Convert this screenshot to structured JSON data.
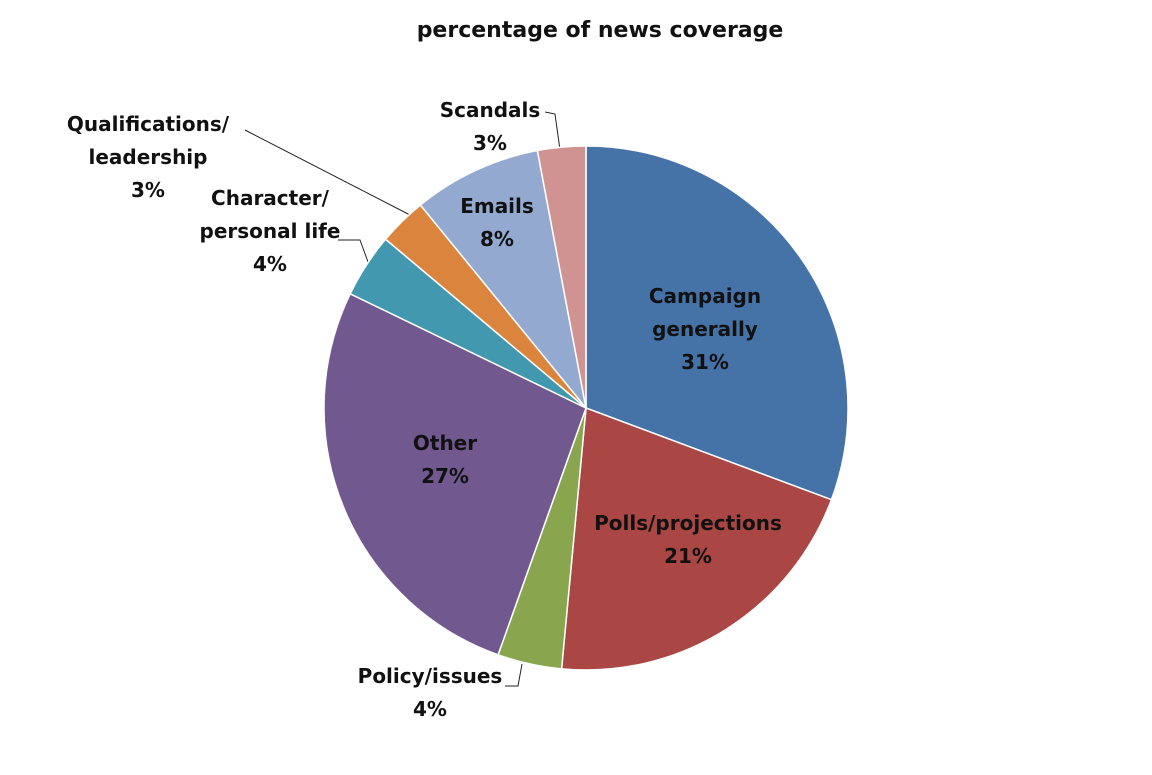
{
  "chart_data": {
    "type": "pie",
    "title": "percentage of news coverage",
    "categories": [
      "Campaign generally",
      "Polls/projections",
      "Policy/issues",
      "Other",
      "Character/ personal life",
      "Qualifications/ leadership",
      "Emails",
      "Scandals"
    ],
    "values": [
      31,
      21,
      4,
      27,
      4,
      3,
      8,
      3
    ],
    "value_labels": [
      "31%",
      "21%",
      "4%",
      "27%",
      "4%",
      "3%",
      "8%",
      "3%"
    ],
    "colors": [
      "#4572a7",
      "#aa4643",
      "#89a54e",
      "#71588f",
      "#4198af",
      "#db843d",
      "#93a9cf",
      "#d19392"
    ]
  }
}
